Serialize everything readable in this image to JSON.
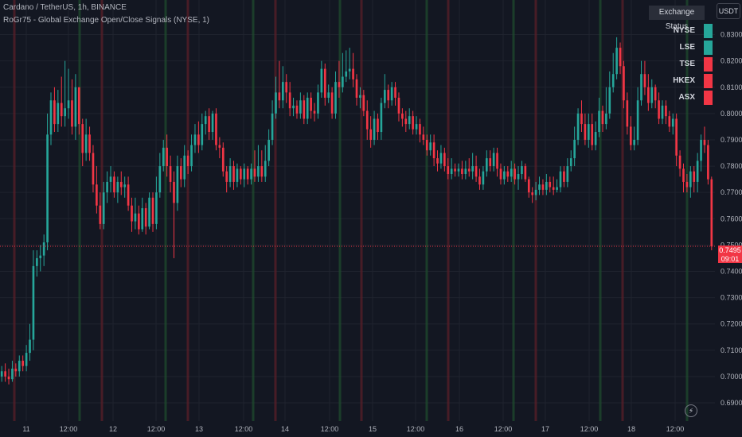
{
  "legend": {
    "line1": "Cardano / TetherUS, 1h, BINANCE",
    "line2": "RoGr75 - Global Exchange Open/Close Signals (NYSE, 1)"
  },
  "currency": "USDT",
  "status_panel": {
    "title": "Exchange Status",
    "exchanges": [
      {
        "name": "NYSE",
        "color": "#26a69a"
      },
      {
        "name": "LSE",
        "color": "#26a69a"
      },
      {
        "name": "TSE",
        "color": "#f23645"
      },
      {
        "name": "HKEX",
        "color": "#f23645"
      },
      {
        "name": "ASX",
        "color": "#f23645"
      }
    ]
  },
  "price_tag": {
    "price": "0.7495",
    "countdown": "09:01"
  },
  "colors": {
    "background": "#131722",
    "up": "#26a69a",
    "down": "#f23645",
    "grid": "#1f232e",
    "open_line": "#1f4b2e",
    "close_line": "#5a1f28"
  },
  "chart_data": {
    "type": "candlestick",
    "title": "Cardano / TetherUS, 1h, BINANCE",
    "ylim": [
      0.688,
      0.838
    ],
    "y_ticks": [
      "0.6900",
      "0.7000",
      "0.7100",
      "0.7200",
      "0.7300",
      "0.7400",
      "0.7500",
      "0.7600",
      "0.7700",
      "0.7800",
      "0.7900",
      "0.8000",
      "0.8100",
      "0.8200",
      "0.8300"
    ],
    "x_ticks": [
      "11",
      "12:00",
      "12",
      "12:00",
      "13",
      "12:00",
      "14",
      "12:00",
      "15",
      "12:00",
      "16",
      "12:00",
      "17",
      "12:00",
      "18",
      "12:00"
    ],
    "last_price": 0.7495,
    "open_signals": [
      18.5,
      55.5,
      92.5,
      129.5,
      166.5,
      203.5,
      240.5,
      277.5
    ],
    "close_signals": [
      7.5,
      44.5,
      81.5,
      118.5,
      155.5,
      192.5,
      229.5,
      266.5
    ],
    "candles": [
      [
        0.7,
        0.702,
        0.698,
        0.704
      ],
      [
        0.702,
        0.7,
        0.698,
        0.705
      ],
      [
        0.7,
        0.699,
        0.697,
        0.703
      ],
      [
        0.699,
        0.703,
        0.698,
        0.706
      ],
      [
        0.703,
        0.702,
        0.7,
        0.705
      ],
      [
        0.702,
        0.706,
        0.7,
        0.708
      ],
      [
        0.706,
        0.704,
        0.702,
        0.708
      ],
      [
        0.704,
        0.709,
        0.702,
        0.712
      ],
      [
        0.709,
        0.714,
        0.706,
        0.72
      ],
      [
        0.714,
        0.742,
        0.71,
        0.748
      ],
      [
        0.742,
        0.745,
        0.738,
        0.748
      ],
      [
        0.745,
        0.746,
        0.74,
        0.75
      ],
      [
        0.746,
        0.751,
        0.742,
        0.754
      ],
      [
        0.751,
        0.792,
        0.748,
        0.8
      ],
      [
        0.792,
        0.805,
        0.788,
        0.808
      ],
      [
        0.805,
        0.796,
        0.793,
        0.81
      ],
      [
        0.796,
        0.804,
        0.793,
        0.809
      ],
      [
        0.804,
        0.799,
        0.795,
        0.814
      ],
      [
        0.799,
        0.802,
        0.795,
        0.82
      ],
      [
        0.802,
        0.805,
        0.798,
        0.817
      ],
      [
        0.805,
        0.795,
        0.792,
        0.813
      ],
      [
        0.795,
        0.81,
        0.79,
        0.815
      ],
      [
        0.81,
        0.796,
        0.792,
        0.81
      ],
      [
        0.796,
        0.785,
        0.78,
        0.798
      ],
      [
        0.785,
        0.792,
        0.782,
        0.798
      ],
      [
        0.792,
        0.785,
        0.782,
        0.795
      ],
      [
        0.785,
        0.773,
        0.77,
        0.788
      ],
      [
        0.773,
        0.765,
        0.762,
        0.78
      ],
      [
        0.765,
        0.758,
        0.756,
        0.77
      ],
      [
        0.758,
        0.77,
        0.756,
        0.774
      ],
      [
        0.77,
        0.774,
        0.766,
        0.778
      ],
      [
        0.774,
        0.776,
        0.77,
        0.78
      ],
      [
        0.776,
        0.77,
        0.768,
        0.778
      ],
      [
        0.77,
        0.774,
        0.766,
        0.776
      ],
      [
        0.774,
        0.772,
        0.769,
        0.778
      ],
      [
        0.772,
        0.773,
        0.768,
        0.776
      ],
      [
        0.773,
        0.765,
        0.763,
        0.776
      ],
      [
        0.765,
        0.759,
        0.755,
        0.768
      ],
      [
        0.759,
        0.762,
        0.756,
        0.768
      ],
      [
        0.762,
        0.756,
        0.754,
        0.765
      ],
      [
        0.756,
        0.764,
        0.755,
        0.768
      ],
      [
        0.764,
        0.757,
        0.754,
        0.766
      ],
      [
        0.757,
        0.768,
        0.756,
        0.77
      ],
      [
        0.768,
        0.758,
        0.755,
        0.77
      ],
      [
        0.758,
        0.77,
        0.756,
        0.776
      ],
      [
        0.77,
        0.78,
        0.768,
        0.785
      ],
      [
        0.78,
        0.787,
        0.778,
        0.79
      ],
      [
        0.787,
        0.78,
        0.776,
        0.792
      ],
      [
        0.78,
        0.774,
        0.77,
        0.784
      ],
      [
        0.774,
        0.766,
        0.745,
        0.778
      ],
      [
        0.766,
        0.78,
        0.763,
        0.784
      ],
      [
        0.78,
        0.775,
        0.772,
        0.783
      ],
      [
        0.775,
        0.784,
        0.772,
        0.788
      ],
      [
        0.784,
        0.78,
        0.777,
        0.786
      ],
      [
        0.78,
        0.788,
        0.778,
        0.792
      ],
      [
        0.788,
        0.792,
        0.785,
        0.796
      ],
      [
        0.792,
        0.788,
        0.785,
        0.797
      ],
      [
        0.788,
        0.796,
        0.786,
        0.8
      ],
      [
        0.796,
        0.799,
        0.792,
        0.801
      ],
      [
        0.799,
        0.793,
        0.79,
        0.802
      ],
      [
        0.793,
        0.8,
        0.79,
        0.801
      ],
      [
        0.8,
        0.788,
        0.786,
        0.802
      ],
      [
        0.788,
        0.787,
        0.783,
        0.791
      ],
      [
        0.787,
        0.778,
        0.776,
        0.789
      ],
      [
        0.778,
        0.774,
        0.77,
        0.78
      ],
      [
        0.774,
        0.78,
        0.772,
        0.783
      ],
      [
        0.78,
        0.774,
        0.771,
        0.782
      ],
      [
        0.774,
        0.779,
        0.772,
        0.781
      ],
      [
        0.779,
        0.775,
        0.773,
        0.78
      ],
      [
        0.775,
        0.779,
        0.772,
        0.781
      ],
      [
        0.779,
        0.775,
        0.773,
        0.78
      ],
      [
        0.775,
        0.779,
        0.773,
        0.781
      ],
      [
        0.779,
        0.776,
        0.774,
        0.786
      ],
      [
        0.776,
        0.78,
        0.774,
        0.788
      ],
      [
        0.78,
        0.776,
        0.774,
        0.786
      ],
      [
        0.776,
        0.782,
        0.774,
        0.788
      ],
      [
        0.782,
        0.79,
        0.78,
        0.794
      ],
      [
        0.79,
        0.8,
        0.788,
        0.805
      ],
      [
        0.8,
        0.808,
        0.798,
        0.814
      ],
      [
        0.808,
        0.805,
        0.802,
        0.82
      ],
      [
        0.805,
        0.812,
        0.802,
        0.818
      ],
      [
        0.812,
        0.808,
        0.804,
        0.815
      ],
      [
        0.808,
        0.802,
        0.799,
        0.812
      ],
      [
        0.802,
        0.803,
        0.799,
        0.806
      ],
      [
        0.803,
        0.8,
        0.798,
        0.805
      ],
      [
        0.8,
        0.805,
        0.798,
        0.808
      ],
      [
        0.805,
        0.798,
        0.796,
        0.807
      ],
      [
        0.798,
        0.806,
        0.796,
        0.808
      ],
      [
        0.806,
        0.801,
        0.798,
        0.808
      ],
      [
        0.801,
        0.8,
        0.797,
        0.804
      ],
      [
        0.8,
        0.808,
        0.798,
        0.811
      ],
      [
        0.808,
        0.817,
        0.806,
        0.82
      ],
      [
        0.817,
        0.806,
        0.803,
        0.819
      ],
      [
        0.806,
        0.808,
        0.804,
        0.811
      ],
      [
        0.808,
        0.8,
        0.798,
        0.81
      ],
      [
        0.8,
        0.812,
        0.798,
        0.816
      ],
      [
        0.812,
        0.81,
        0.806,
        0.82
      ],
      [
        0.81,
        0.814,
        0.808,
        0.823
      ],
      [
        0.814,
        0.816,
        0.812,
        0.824
      ],
      [
        0.816,
        0.817,
        0.813,
        0.825
      ],
      [
        0.817,
        0.813,
        0.81,
        0.823
      ],
      [
        0.813,
        0.806,
        0.803,
        0.815
      ],
      [
        0.806,
        0.807,
        0.802,
        0.81
      ],
      [
        0.807,
        0.801,
        0.799,
        0.809
      ],
      [
        0.801,
        0.794,
        0.79,
        0.805
      ],
      [
        0.794,
        0.79,
        0.787,
        0.799
      ],
      [
        0.79,
        0.798,
        0.788,
        0.801
      ],
      [
        0.798,
        0.793,
        0.79,
        0.8
      ],
      [
        0.793,
        0.804,
        0.79,
        0.806
      ],
      [
        0.804,
        0.809,
        0.802,
        0.815
      ],
      [
        0.809,
        0.805,
        0.802,
        0.811
      ],
      [
        0.805,
        0.81,
        0.803,
        0.812
      ],
      [
        0.81,
        0.806,
        0.803,
        0.812
      ],
      [
        0.806,
        0.8,
        0.797,
        0.808
      ],
      [
        0.8,
        0.798,
        0.795,
        0.802
      ],
      [
        0.798,
        0.796,
        0.793,
        0.801
      ],
      [
        0.796,
        0.799,
        0.794,
        0.802
      ],
      [
        0.799,
        0.794,
        0.792,
        0.801
      ],
      [
        0.794,
        0.796,
        0.792,
        0.799
      ],
      [
        0.796,
        0.792,
        0.789,
        0.798
      ],
      [
        0.792,
        0.79,
        0.788,
        0.795
      ],
      [
        0.79,
        0.786,
        0.784,
        0.792
      ],
      [
        0.786,
        0.789,
        0.784,
        0.792
      ],
      [
        0.789,
        0.783,
        0.78,
        0.792
      ],
      [
        0.783,
        0.781,
        0.778,
        0.786
      ],
      [
        0.781,
        0.785,
        0.779,
        0.788
      ],
      [
        0.785,
        0.78,
        0.778,
        0.787
      ],
      [
        0.78,
        0.777,
        0.775,
        0.783
      ],
      [
        0.777,
        0.779,
        0.775,
        0.783
      ],
      [
        0.779,
        0.778,
        0.776,
        0.781
      ],
      [
        0.778,
        0.779,
        0.776,
        0.781
      ],
      [
        0.779,
        0.777,
        0.775,
        0.782
      ],
      [
        0.777,
        0.779,
        0.775,
        0.782
      ],
      [
        0.779,
        0.778,
        0.776,
        0.783
      ],
      [
        0.778,
        0.78,
        0.775,
        0.785
      ],
      [
        0.78,
        0.776,
        0.774,
        0.784
      ],
      [
        0.776,
        0.773,
        0.771,
        0.779
      ],
      [
        0.773,
        0.778,
        0.771,
        0.78
      ],
      [
        0.778,
        0.783,
        0.776,
        0.786
      ],
      [
        0.783,
        0.78,
        0.778,
        0.786
      ],
      [
        0.78,
        0.785,
        0.778,
        0.787
      ],
      [
        0.785,
        0.779,
        0.776,
        0.787
      ],
      [
        0.779,
        0.775,
        0.773,
        0.781
      ],
      [
        0.775,
        0.778,
        0.773,
        0.78
      ],
      [
        0.778,
        0.776,
        0.774,
        0.78
      ],
      [
        0.776,
        0.779,
        0.774,
        0.782
      ],
      [
        0.779,
        0.775,
        0.773,
        0.781
      ],
      [
        0.775,
        0.777,
        0.771,
        0.78
      ],
      [
        0.777,
        0.78,
        0.775,
        0.782
      ],
      [
        0.78,
        0.775,
        0.774,
        0.781
      ],
      [
        0.775,
        0.77,
        0.768,
        0.776
      ],
      [
        0.77,
        0.769,
        0.766,
        0.772
      ],
      [
        0.769,
        0.771,
        0.767,
        0.774
      ],
      [
        0.771,
        0.773,
        0.769,
        0.776
      ],
      [
        0.773,
        0.771,
        0.769,
        0.775
      ],
      [
        0.771,
        0.774,
        0.769,
        0.777
      ],
      [
        0.774,
        0.772,
        0.77,
        0.776
      ],
      [
        0.772,
        0.771,
        0.769,
        0.776
      ],
      [
        0.771,
        0.772,
        0.77,
        0.775
      ],
      [
        0.772,
        0.778,
        0.77,
        0.78
      ],
      [
        0.778,
        0.774,
        0.772,
        0.78
      ],
      [
        0.774,
        0.78,
        0.772,
        0.783
      ],
      [
        0.78,
        0.783,
        0.778,
        0.786
      ],
      [
        0.783,
        0.79,
        0.78,
        0.795
      ],
      [
        0.79,
        0.8,
        0.788,
        0.802
      ],
      [
        0.8,
        0.796,
        0.793,
        0.805
      ],
      [
        0.796,
        0.79,
        0.788,
        0.8
      ],
      [
        0.79,
        0.796,
        0.787,
        0.8
      ],
      [
        0.796,
        0.788,
        0.786,
        0.8
      ],
      [
        0.788,
        0.793,
        0.786,
        0.797
      ],
      [
        0.793,
        0.801,
        0.791,
        0.806
      ],
      [
        0.801,
        0.796,
        0.793,
        0.803
      ],
      [
        0.796,
        0.8,
        0.794,
        0.81
      ],
      [
        0.8,
        0.81,
        0.798,
        0.816
      ],
      [
        0.81,
        0.815,
        0.808,
        0.823
      ],
      [
        0.815,
        0.825,
        0.813,
        0.829
      ],
      [
        0.825,
        0.818,
        0.815,
        0.827
      ],
      [
        0.818,
        0.805,
        0.802,
        0.82
      ],
      [
        0.805,
        0.795,
        0.792,
        0.808
      ],
      [
        0.795,
        0.788,
        0.786,
        0.799
      ],
      [
        0.788,
        0.79,
        0.786,
        0.795
      ],
      [
        0.79,
        0.805,
        0.788,
        0.81
      ],
      [
        0.805,
        0.815,
        0.803,
        0.82
      ],
      [
        0.815,
        0.81,
        0.807,
        0.82
      ],
      [
        0.81,
        0.804,
        0.801,
        0.815
      ],
      [
        0.804,
        0.81,
        0.802,
        0.813
      ],
      [
        0.81,
        0.805,
        0.802,
        0.811
      ],
      [
        0.805,
        0.798,
        0.796,
        0.808
      ],
      [
        0.798,
        0.803,
        0.796,
        0.805
      ],
      [
        0.803,
        0.799,
        0.796,
        0.805
      ],
      [
        0.799,
        0.795,
        0.793,
        0.801
      ],
      [
        0.795,
        0.798,
        0.792,
        0.8
      ],
      [
        0.798,
        0.784,
        0.78,
        0.8
      ],
      [
        0.784,
        0.779,
        0.776,
        0.786
      ],
      [
        0.779,
        0.774,
        0.77,
        0.781
      ],
      [
        0.774,
        0.772,
        0.77,
        0.777
      ],
      [
        0.772,
        0.778,
        0.768,
        0.78
      ],
      [
        0.778,
        0.774,
        0.77,
        0.78
      ],
      [
        0.774,
        0.782,
        0.77,
        0.785
      ],
      [
        0.782,
        0.79,
        0.778,
        0.792
      ],
      [
        0.79,
        0.788,
        0.785,
        0.795
      ],
      [
        0.788,
        0.775,
        0.773,
        0.79
      ],
      [
        0.775,
        0.7495,
        0.748,
        0.776
      ]
    ]
  }
}
